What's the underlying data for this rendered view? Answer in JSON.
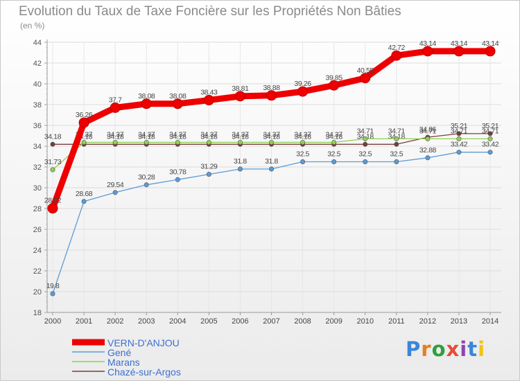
{
  "header": {
    "title": "Evolution du Taux de Taxe Foncière sur les Propriétés Non Bâties",
    "unit": "(en %)"
  },
  "logo": {
    "text": "Proxiti",
    "colors": [
      "#3a86d9",
      "#e67e22",
      "#2e9e3f",
      "#e74c3c",
      "#8e44ad",
      "#3a86d9",
      "#f1c40f"
    ]
  },
  "chart_data": {
    "type": "line",
    "x": [
      "2000",
      "2001",
      "2002",
      "2003",
      "2004",
      "2005",
      "2006",
      "2007",
      "2008",
      "2009",
      "2010",
      "2011",
      "2012",
      "2013",
      "2014"
    ],
    "ylim": [
      18,
      44
    ],
    "yticks": [
      18,
      20,
      22,
      24,
      26,
      28,
      30,
      32,
      34,
      36,
      38,
      40,
      42,
      44
    ],
    "grid": true,
    "legend_position": "bottom-left",
    "series": [
      {
        "name": "Chazé-sur-Argos",
        "color": "#7a3b3b",
        "values": [
          34.18,
          34.18,
          34.18,
          34.18,
          34.18,
          34.18,
          34.18,
          34.18,
          34.18,
          34.18,
          34.18,
          34.18,
          34.86,
          35.21,
          35.21
        ],
        "labels": [
          "34.18",
          "34.18",
          "34.18",
          "34.18",
          "34.18",
          "34.18",
          "34.18",
          "34.18",
          "34.18",
          "34.18",
          "34.18",
          "34.18",
          "34.86",
          "35.21",
          "35.21"
        ]
      },
      {
        "name": "Marans",
        "color": "#8fd14f",
        "values": [
          31.73,
          34.37,
          34.37,
          34.37,
          34.37,
          34.37,
          34.37,
          34.37,
          34.37,
          34.37,
          34.71,
          34.71,
          34.71,
          34.71,
          34.71
        ],
        "labels": [
          "31.73",
          "34.37",
          "34.37",
          "34.37",
          "34.37",
          "34.37",
          "34.37",
          "34.37",
          "34.37",
          "34.37",
          "34.71",
          "34.71",
          "34.71",
          "34.71",
          "34.71"
        ]
      },
      {
        "name": "Gené",
        "color": "#5b9bd5",
        "values": [
          19.8,
          28.68,
          29.54,
          30.28,
          30.78,
          31.29,
          31.8,
          31.8,
          32.5,
          32.5,
          32.5,
          32.5,
          32.88,
          33.42,
          33.42
        ],
        "labels": [
          "19.8",
          "28.68",
          "29.54",
          "30.28",
          "30.78",
          "31.29",
          "31.8",
          "31.8",
          "32.5",
          "32.5",
          "32.5",
          "32.5",
          "32.88",
          "33.42",
          "33.42"
        ]
      },
      {
        "name": "VERN-D'ANJOU",
        "color": "#ee0000",
        "values": [
          28.02,
          36.26,
          37.7,
          38.08,
          38.08,
          38.43,
          38.81,
          38.88,
          39.26,
          39.85,
          40.55,
          42.72,
          43.14,
          43.14,
          43.14
        ],
        "labels": [
          "28.02",
          "36.26",
          "37.7",
          "38.08",
          "38.08",
          "38.43",
          "38.81",
          "38.88",
          "39.26",
          "39.85",
          "40.55",
          "42.72",
          "43.14",
          "43.14",
          "43.14"
        ]
      }
    ],
    "legend": [
      "VERN-D'ANJOU",
      "Gené",
      "Marans",
      "Chazé-sur-Argos"
    ]
  }
}
